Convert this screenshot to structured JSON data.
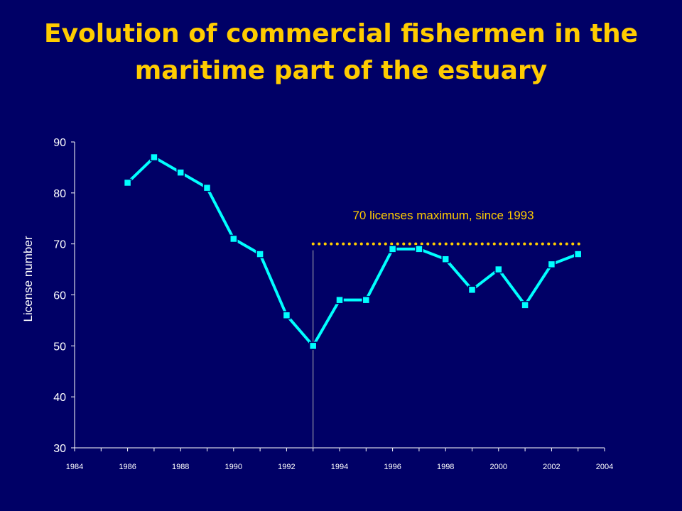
{
  "chart_data": {
    "type": "line",
    "title": "Evolution of commercial fishermen in the maritime part of the estuary",
    "xlabel": "",
    "ylabel": "License number",
    "xlim": [
      1984,
      2004
    ],
    "ylim": [
      30,
      90
    ],
    "x_ticks": [
      1984,
      1986,
      1988,
      1990,
      1992,
      1994,
      1996,
      1998,
      2000,
      2002,
      2004
    ],
    "y_ticks": [
      30,
      40,
      50,
      60,
      70,
      80,
      90
    ],
    "grid": false,
    "series": [
      {
        "x": [
          1986,
          1987,
          1988,
          1989,
          1990,
          1991,
          1992,
          1993,
          1994,
          1995,
          1996,
          1997,
          1998,
          1999,
          2000,
          2001,
          2002,
          2003
        ],
        "values": [
          82,
          87,
          84,
          81,
          71,
          68,
          56,
          50,
          59,
          59,
          69,
          69,
          67,
          61,
          65,
          58,
          66,
          68
        ]
      }
    ],
    "reference_line": {
      "value": 70,
      "from": 1993,
      "to": 2004
    },
    "vertical_marker": {
      "x": 1993
    },
    "annotation": "70 licenses maximum, since 1993",
    "colors": {
      "background": "#000066",
      "line": "#00FFFF",
      "marker": "#00FFFF",
      "title": "#FFCC00",
      "annotation": "#FFCC00",
      "axis": "#FFFFFF"
    }
  }
}
